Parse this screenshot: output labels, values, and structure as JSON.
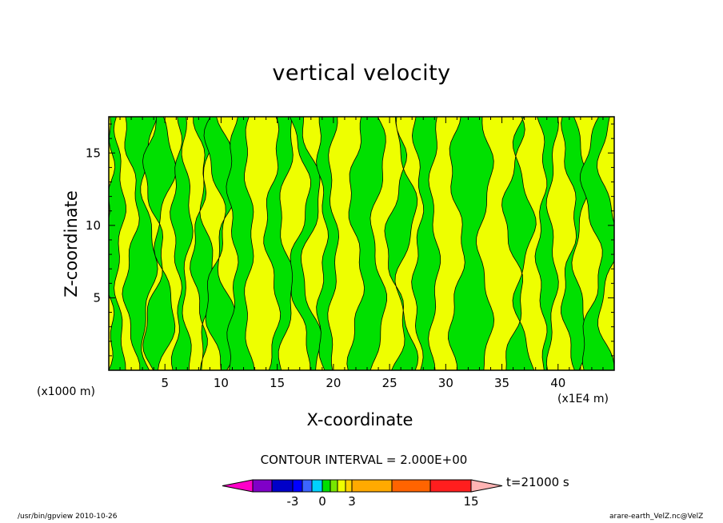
{
  "chart_data": {
    "type": "heatmap",
    "title": "vertical velocity",
    "xlabel": "X-coordinate",
    "ylabel": "Z-coordinate",
    "x_unit_label": "(x1000 m)",
    "x_scale_label": "(x1E4 m)",
    "xlim": [
      0,
      45
    ],
    "ylim": [
      0,
      17.5
    ],
    "x_ticks": [
      "5",
      "10",
      "15",
      "20",
      "25",
      "30",
      "35",
      "40"
    ],
    "y_ticks": [
      "5",
      "10",
      "15"
    ],
    "contour_interval_label": "CONTOUR INTERVAL = 2.000E+00",
    "time_label": "t=21000 s",
    "colorbar_labels": [
      "-3",
      "0",
      "3",
      "15"
    ],
    "shading_colors": {
      "positive": "#eeff00",
      "negative": "#00e000"
    },
    "colorbar_colors": [
      "#ff00c8",
      "#8000c8",
      "#0000c8",
      "#0000ff",
      "#3c64ff",
      "#00d2ff",
      "#00e000",
      "#78e600",
      "#eeff00",
      "#ffd200",
      "#ffaa00",
      "#ff6400",
      "#ff1e1e",
      "#ff7878",
      "#ffb4b4"
    ],
    "negative_regions_x": [
      [
        0,
        1
      ],
      [
        2,
        3.6
      ],
      [
        4,
        5
      ],
      [
        6,
        7
      ],
      [
        8,
        8.8
      ],
      [
        9.5,
        10.5
      ],
      [
        11,
        12.5
      ],
      [
        14.5,
        15.8
      ],
      [
        17,
        18
      ],
      [
        19,
        20
      ],
      [
        22,
        24
      ],
      [
        25.5,
        26.5
      ],
      [
        27.5,
        29
      ],
      [
        31,
        33.5
      ],
      [
        36,
        37
      ],
      [
        38.5,
        39.5
      ],
      [
        41,
        42
      ],
      [
        43,
        44.5
      ]
    ]
  },
  "footer": {
    "left": "/usr/bin/gpview   2010-10-26",
    "right": "arare-earth_VelZ.nc@VelZ"
  }
}
